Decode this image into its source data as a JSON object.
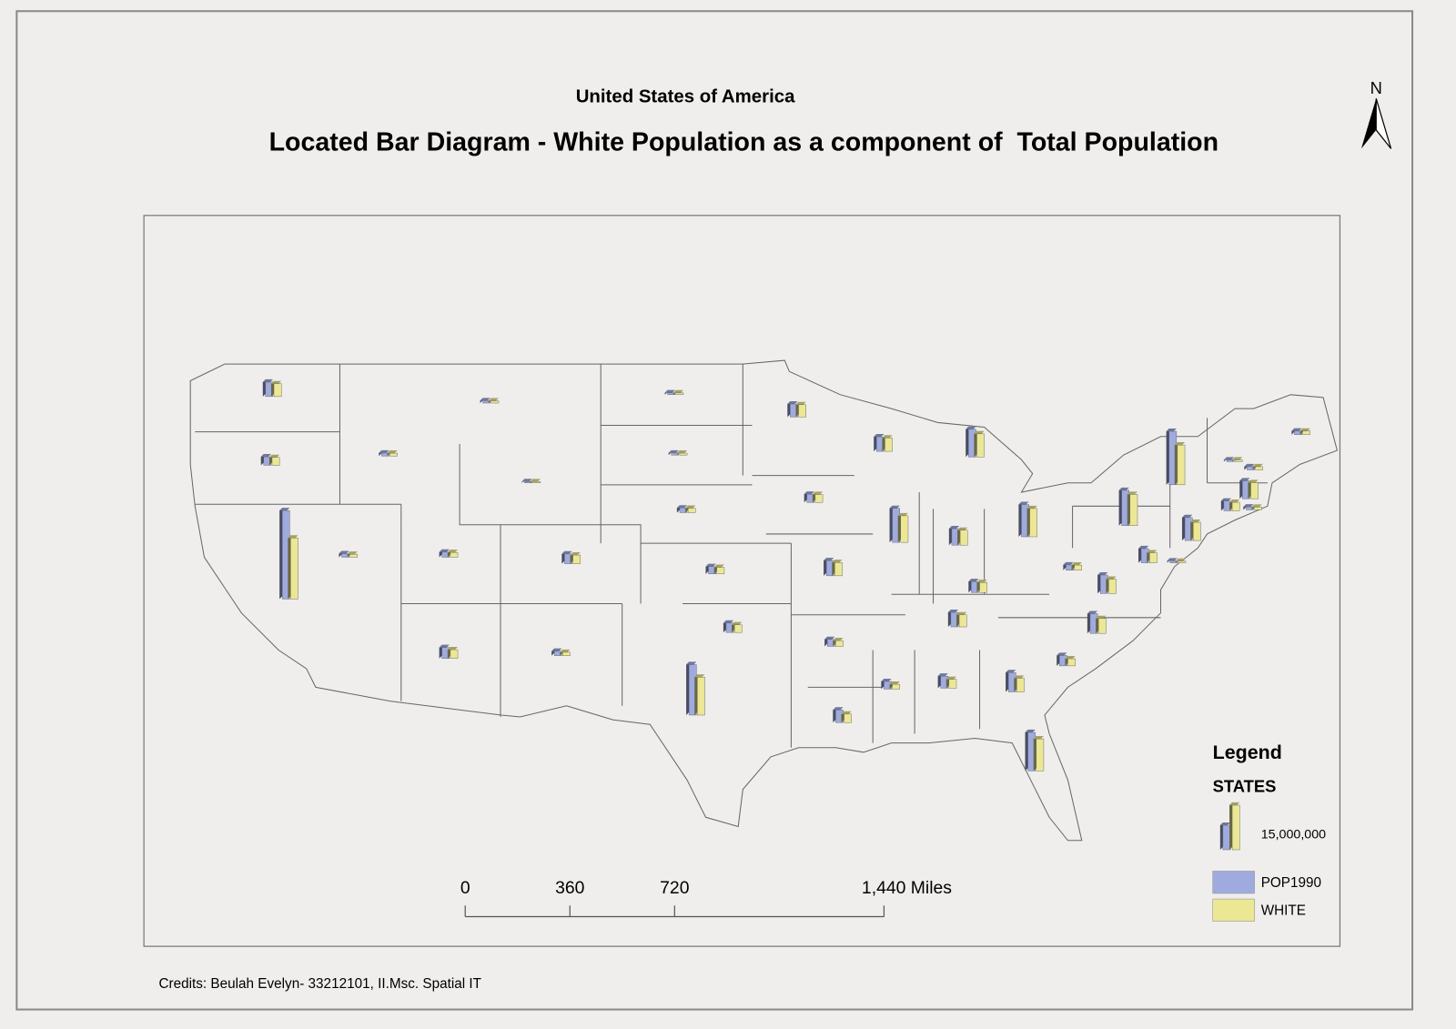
{
  "header": {
    "subtitle": "United States of America",
    "title": "Located Bar Diagram - White Population as a component of  Total Population"
  },
  "north_arrow": {
    "label": "N"
  },
  "chart_data": {
    "type": "located-bar",
    "series": [
      {
        "name": "POP1990",
        "color": "#9fabdf",
        "values": [
          4870000,
          2840000,
          29760000,
          1200000,
          1010000,
          800000,
          450000,
          1720000,
          3670000,
          3290000,
          1520000,
          640000,
          700000,
          1580000,
          2480000,
          3150000,
          16990000,
          4380000,
          2780000,
          5120000,
          2350000,
          4220000,
          4890000,
          11430000,
          9300000,
          5540000,
          10850000,
          3690000,
          4880000,
          2570000,
          4040000,
          6480000,
          12940000,
          3490000,
          6630000,
          6190000,
          1790000,
          11880000,
          17990000,
          7730000,
          670000,
          4780000,
          3290000,
          1000000,
          6020000,
          560000,
          1110000,
          1230000
        ]
      },
      {
        "name": "WHITE",
        "color": "#ebe795",
        "values": [
          4310000,
          2640000,
          20520000,
          1010000,
          950000,
          740000,
          430000,
          1620000,
          2960000,
          2910000,
          1150000,
          600000,
          640000,
          1480000,
          2230000,
          2580000,
          12770000,
          4130000,
          2680000,
          4490000,
          1940000,
          2840000,
          4510000,
          8950000,
          7760000,
          5020000,
          9520000,
          3390000,
          4050000,
          1630000,
          2980000,
          4600000,
          10750000,
          2410000,
          5010000,
          4790000,
          1730000,
          10520000,
          13390000,
          6130000,
          540000,
          3390000,
          2860000,
          920000,
          5410000,
          560000,
          1090000,
          1210000
        ]
      }
    ]
  },
  "legend": {
    "title": "Legend",
    "layer": "STATES",
    "reference": {
      "value": 15000000,
      "label": "15,000,000"
    }
  },
  "scale_bar": {
    "ticks": [
      0,
      360,
      720,
      {
        "value": 1440,
        "label": "1,440 Miles"
      }
    ]
  },
  "credits": "Credits: Beulah Evelyn- 33212101, II.Msc. Spatial IT"
}
